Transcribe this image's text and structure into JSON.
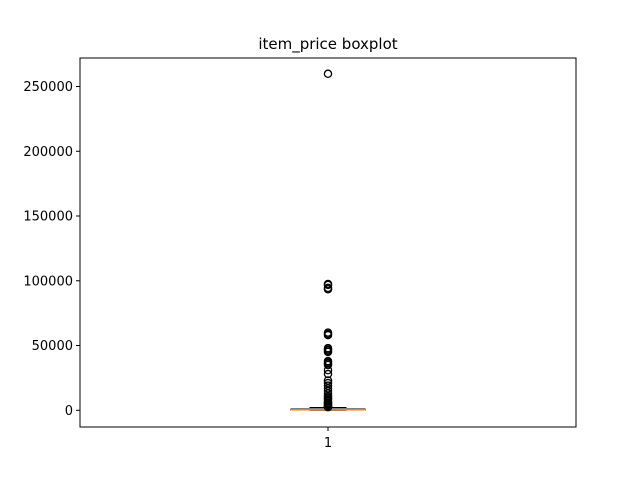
{
  "chart_data": {
    "type": "boxplot",
    "title": "item_price boxplot",
    "xlabel": "",
    "ylabel": "",
    "categories": [
      "1"
    ],
    "ylim": [
      -12900,
      272000
    ],
    "yticks": [
      0,
      50000,
      100000,
      150000,
      200000,
      250000
    ],
    "ytick_labels": [
      "0",
      "50000",
      "100000",
      "150000",
      "200000",
      "250000"
    ],
    "grid": false,
    "box": {
      "q1": 249,
      "median": 399,
      "q3": 999,
      "whisker_low": 0,
      "whisker_high": 2124
    },
    "outliers": [
      259800,
      97500,
      96800,
      94500,
      93500,
      60000,
      59000,
      58000,
      48000,
      47000,
      46000,
      45000,
      38000,
      37000,
      36000,
      35000,
      31000,
      28000,
      23000,
      21000,
      19000,
      17000,
      15000,
      13000,
      11000,
      10000,
      9000,
      8000,
      7000,
      6000,
      5500,
      5000,
      4500,
      4000,
      3500,
      3000,
      2700,
      2400
    ],
    "colors": {
      "box": "#000000",
      "median": "#ff7f0e",
      "outlier": "#000000"
    }
  }
}
